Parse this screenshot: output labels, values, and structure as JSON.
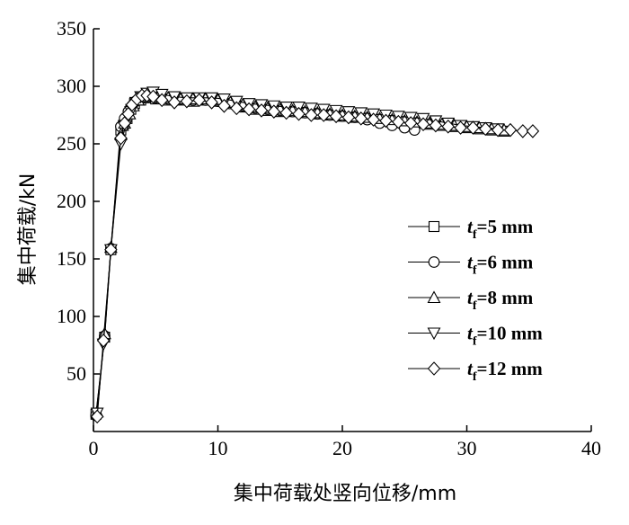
{
  "chart_data": {
    "type": "line",
    "xlabel": "集中荷载处竖向位移/mm",
    "ylabel": "集中荷载/kN",
    "xlim": [
      0,
      40
    ],
    "ylim": [
      0,
      350
    ],
    "xticks": [
      0,
      10,
      20,
      30,
      40
    ],
    "yticks": [
      50,
      100,
      150,
      200,
      250,
      300,
      350
    ],
    "grid": false,
    "legend_position": "right",
    "series": [
      {
        "name": "tf=5 mm",
        "legend_italic": "t",
        "legend_sub": "f",
        "legend_rest": "=5 mm",
        "marker": "square",
        "x": [
          0.2,
          0.9,
          1.4,
          2.2,
          2.4,
          2.7,
          3.0,
          3.3,
          3.8,
          4.3,
          5.0,
          6.0,
          7.0,
          8.0,
          9.0,
          10.0,
          11.0,
          12.0,
          13.0,
          14.0,
          15.0,
          16.0,
          17.0,
          18.0,
          19.0,
          20.0,
          21.0,
          22.0,
          23.0,
          24.0,
          25.0,
          26.0,
          27.0,
          28.0,
          29.0,
          30.0,
          31.0,
          32.0,
          33.0
        ],
        "y": [
          15,
          82,
          158,
          262,
          266,
          272,
          280,
          285,
          288,
          290,
          289,
          288,
          288,
          287,
          288,
          287,
          285,
          282,
          280,
          279,
          278,
          278,
          277,
          276,
          275,
          274,
          273,
          272,
          271,
          270,
          269,
          268,
          267,
          266,
          265,
          264,
          263,
          262,
          261
        ]
      },
      {
        "name": "tf=6 mm",
        "legend_italic": "t",
        "legend_sub": "f",
        "legend_rest": "=6 mm",
        "marker": "circle",
        "x": [
          0.2,
          0.9,
          1.4,
          2.2,
          2.5,
          2.8,
          3.1,
          3.4,
          3.9,
          4.4,
          5.0,
          6.0,
          7.0,
          8.0,
          9.0,
          10.0,
          11.0,
          12.0,
          13.0,
          14.0,
          15.0,
          16.0,
          17.0,
          18.0,
          19.0,
          20.0,
          21.0,
          22.0,
          23.0,
          24.0,
          25.0,
          25.8
        ],
        "y": [
          14,
          83,
          159,
          265,
          272,
          278,
          283,
          287,
          290,
          291,
          290,
          289,
          289,
          288,
          288,
          287,
          285,
          283,
          281,
          280,
          279,
          278,
          277,
          276,
          275,
          274,
          273,
          271,
          268,
          266,
          264,
          262
        ]
      },
      {
        "name": "tf=8 mm",
        "legend_italic": "t",
        "legend_sub": "f",
        "legend_rest": "=8 mm",
        "marker": "triangle-up",
        "x": [
          0.3,
          0.9,
          1.4,
          2.2,
          2.5,
          2.9,
          3.2,
          3.6,
          4.1,
          4.6,
          5.2,
          6.0,
          7.0,
          8.0,
          9.0,
          10.0,
          11.0,
          12.0,
          13.0,
          14.0,
          15.0,
          16.0,
          17.0,
          18.0,
          19.0,
          20.0,
          21.0,
          22.0,
          23.0,
          24.0,
          25.0,
          26.0,
          27.0,
          28.0,
          29.0,
          30.0,
          31.0,
          32.0,
          33.0
        ],
        "y": [
          17,
          85,
          160,
          258,
          268,
          276,
          283,
          288,
          291,
          292,
          291,
          290,
          289,
          289,
          289,
          288,
          286,
          284,
          282,
          281,
          280,
          279,
          278,
          277,
          276,
          275,
          274,
          273,
          272,
          271,
          270,
          269,
          268,
          267,
          266,
          265,
          264,
          263,
          262
        ]
      },
      {
        "name": "tf=10 mm",
        "legend_italic": "t",
        "legend_sub": "f",
        "legend_rest": "=10 mm",
        "marker": "triangle-down",
        "x": [
          0.3,
          0.8,
          1.4,
          2.2,
          2.6,
          3.0,
          3.4,
          3.8,
          4.3,
          4.8,
          5.5,
          6.5,
          7.5,
          8.5,
          9.5,
          10.5,
          11.5,
          12.5,
          13.5,
          14.5,
          15.5,
          16.5,
          17.5,
          18.5,
          19.5,
          20.5,
          21.5,
          22.5,
          23.5,
          24.5,
          25.5,
          26.5,
          27.5,
          28.5,
          29.5,
          30.5,
          31.5,
          32.5
        ],
        "y": [
          16,
          76,
          158,
          250,
          266,
          278,
          286,
          291,
          294,
          295,
          293,
          291,
          290,
          290,
          290,
          289,
          287,
          285,
          284,
          283,
          282,
          282,
          281,
          280,
          279,
          278,
          277,
          276,
          275,
          274,
          273,
          272,
          270,
          268,
          266,
          265,
          264,
          263
        ]
      },
      {
        "name": "tf=12 mm",
        "legend_italic": "t",
        "legend_sub": "f",
        "legend_rest": "=12 mm",
        "marker": "diamond",
        "x": [
          0.3,
          0.8,
          1.4,
          2.2,
          2.5,
          2.8,
          3.1,
          3.5,
          3.9,
          4.3,
          4.8,
          5.5,
          6.5,
          7.5,
          8.5,
          9.5,
          10.5,
          11.5,
          12.5,
          13.5,
          14.5,
          15.5,
          16.5,
          17.5,
          18.5,
          19.5,
          20.5,
          21.5,
          22.5,
          23.5,
          24.5,
          25.5,
          26.5,
          27.5,
          28.5,
          29.5,
          30.5,
          31.5,
          32.5,
          33.5,
          34.5,
          35.3
        ],
        "y": [
          13,
          79,
          158,
          255,
          268,
          276,
          284,
          289,
          292,
          292,
          291,
          288,
          286,
          287,
          288,
          286,
          283,
          281,
          280,
          279,
          278,
          277,
          276,
          275,
          275,
          274,
          273,
          272,
          271,
          270,
          269,
          268,
          267,
          266,
          265,
          264,
          264,
          263,
          262,
          262,
          261,
          261
        ]
      }
    ]
  }
}
